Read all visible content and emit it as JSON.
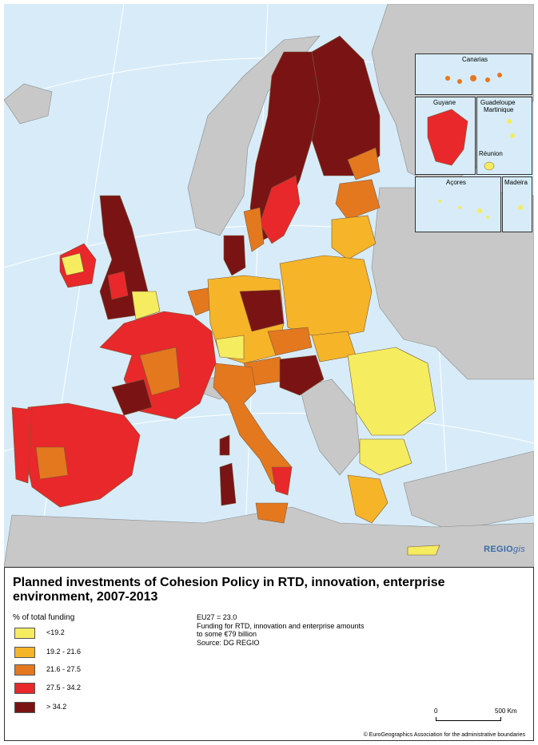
{
  "title": "Planned investments of Cohesion Policy in RTD, innovation, enterprise environment, 2007-2013",
  "legend": {
    "heading": "% of total funding",
    "items": [
      {
        "label": "<19.2",
        "color": "#f5ec60"
      },
      {
        "label": "19.2 - 21.6",
        "color": "#f6b428"
      },
      {
        "label": "21.6 - 27.5",
        "color": "#e4781f"
      },
      {
        "label": "27.5 - 34.2",
        "color": "#e8282a"
      },
      {
        "label": "> 34.2",
        "color": "#7a1414"
      }
    ]
  },
  "notes": {
    "line1": "EU27 = 23.0",
    "line2": "Funding for RTD, innovation and enterprise amounts",
    "line3": "to some €79 billion",
    "line4": "Source: DG REGIO"
  },
  "insets": {
    "canarias": "Canarias",
    "guyane": "Guyane",
    "guadeloupe": "Guadeloupe",
    "martinique": "Martinique",
    "reunion": "Réunion",
    "acores": "Açores",
    "madeira": "Madeira"
  },
  "brand": {
    "regio": "REGIO",
    "gis": "gis"
  },
  "scale": {
    "start": "0",
    "end": "500 Km"
  },
  "copyright": "© EuroGeographics Association for the administrative boundaries",
  "colors": {
    "sea": "#d7ecf8",
    "non_eu": "#c8c8c8",
    "graticule": "#ffffff"
  }
}
